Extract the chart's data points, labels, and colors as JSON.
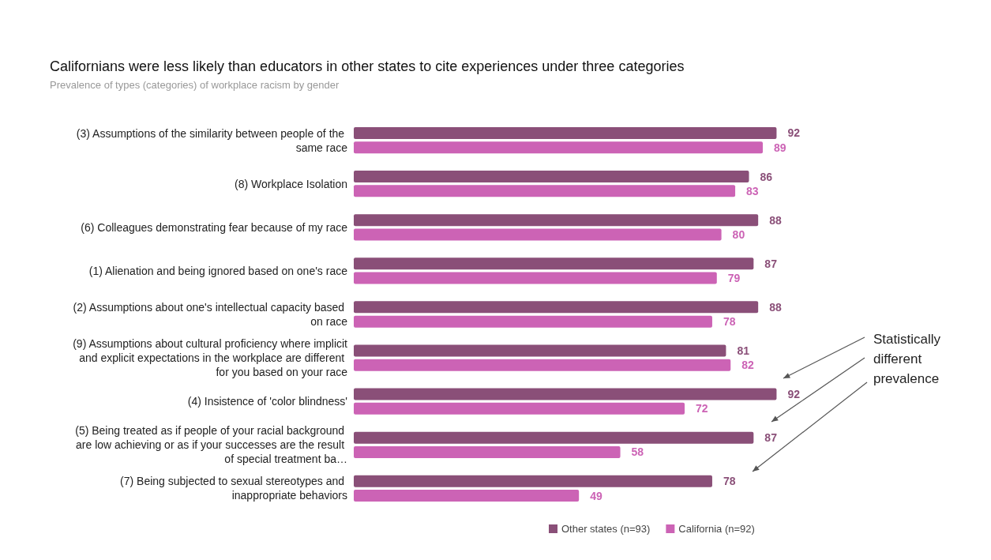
{
  "chart_data": {
    "type": "bar",
    "orientation": "horizontal",
    "data_labels": true,
    "legend": "bottom",
    "title": "Californians were less likely than educators in other states to cite experiences under three categories",
    "subtitle": "Prevalence of types (categories) of workplace racism by gender",
    "categories": [
      "(3) Assumptions of the similarity between people of the same race",
      "(8) Workplace Isolation",
      "(6) Colleagues demonstrating fear because of my race",
      "(1) Alienation and being ignored based on one's race",
      "(2) Assumptions about one's intellectual capacity based on race",
      "(9) Assumptions about cultural proficiency where implicit and explicit expectations in the workplace are different for you based on your race",
      "(4) Insistence of 'color blindness'",
      "(5) Being treated as if people of your racial background are low achieving or as if your successes are the result of special treatment ba…",
      "(7) Being subjected to sexual stereotypes and inappropriate behaviors"
    ],
    "series": [
      {
        "name": "Other states (n=93)",
        "color": "#8a4f78",
        "values": [
          92,
          86,
          88,
          87,
          88,
          81,
          92,
          87,
          78
        ]
      },
      {
        "name": "California (n=92)",
        "color": "#cc63b5",
        "values": [
          89,
          83,
          80,
          79,
          78,
          82,
          72,
          58,
          49
        ]
      }
    ],
    "annotations": [
      "Statistically different prevalence"
    ]
  }
}
